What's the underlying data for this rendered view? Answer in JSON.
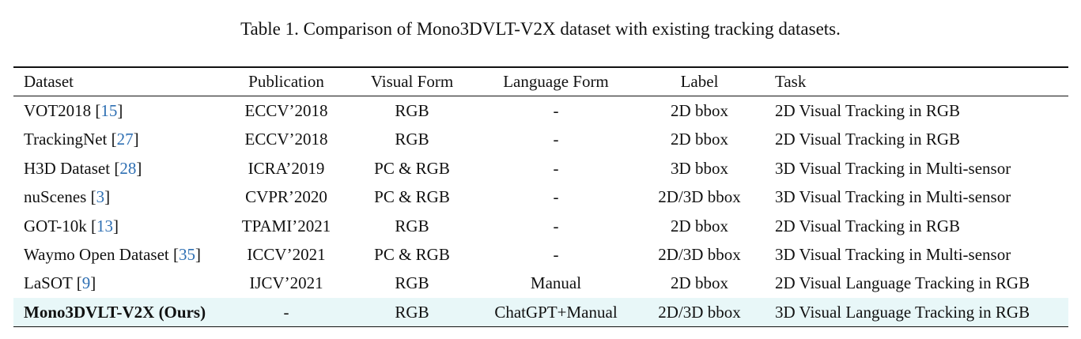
{
  "caption": "Table 1. Comparison of Mono3DVLT-V2X dataset with existing tracking datasets.",
  "table": {
    "headers": {
      "dataset": "Dataset",
      "publication": "Publication",
      "visual_form": "Visual Form",
      "language_form": "Language Form",
      "label": "Label",
      "task": "Task"
    },
    "rows": [
      {
        "dataset": "VOT2018",
        "open": "[",
        "ref": "15",
        "close": "]",
        "publication": "ECCV’2018",
        "visual_form": "RGB",
        "language_form": "-",
        "label": "2D bbox",
        "task": "2D Visual Tracking in RGB"
      },
      {
        "dataset": "TrackingNet",
        "open": "[",
        "ref": "27",
        "close": "]",
        "publication": "ECCV’2018",
        "visual_form": "RGB",
        "language_form": "-",
        "label": "2D bbox",
        "task": "2D Visual Tracking in RGB"
      },
      {
        "dataset": "H3D Dataset",
        "open": "[",
        "ref": "28",
        "close": "]",
        "publication": "ICRA’2019",
        "visual_form": "PC & RGB",
        "language_form": "-",
        "label": "3D bbox",
        "task": "3D Visual Tracking in Multi-sensor"
      },
      {
        "dataset": "nuScenes",
        "open": "[",
        "ref": "3",
        "close": "]",
        "publication": "CVPR’2020",
        "visual_form": "PC & RGB",
        "language_form": "-",
        "label": "2D/3D bbox",
        "task": "3D Visual Tracking in Multi-sensor"
      },
      {
        "dataset": "GOT-10k",
        "open": "[",
        "ref": "13",
        "close": "]",
        "publication": "TPAMI’2021",
        "visual_form": "RGB",
        "language_form": "-",
        "label": "2D bbox",
        "task": "2D Visual Tracking in RGB"
      },
      {
        "dataset": "Waymo Open Dataset",
        "open": "[",
        "ref": "35",
        "close": "]",
        "publication": "ICCV’2021",
        "visual_form": "PC & RGB",
        "language_form": "-",
        "label": "2D/3D bbox",
        "task": "3D Visual Tracking in Multi-sensor"
      },
      {
        "dataset": "LaSOT",
        "open": "[",
        "ref": "9",
        "close": "]",
        "publication": "IJCV’2021",
        "visual_form": "RGB",
        "language_form": "Manual",
        "label": "2D bbox",
        "task": "2D Visual Language Tracking in RGB"
      }
    ],
    "ours": {
      "dataset": "Mono3DVLT-V2X (Ours)",
      "publication": "-",
      "visual_form": "RGB",
      "language_form": "ChatGPT+Manual",
      "label": "2D/3D bbox",
      "task": "3D Visual Language Tracking in RGB",
      "highlight_color": "#e8f7f8"
    },
    "reference_color": "#2e6fb3"
  }
}
